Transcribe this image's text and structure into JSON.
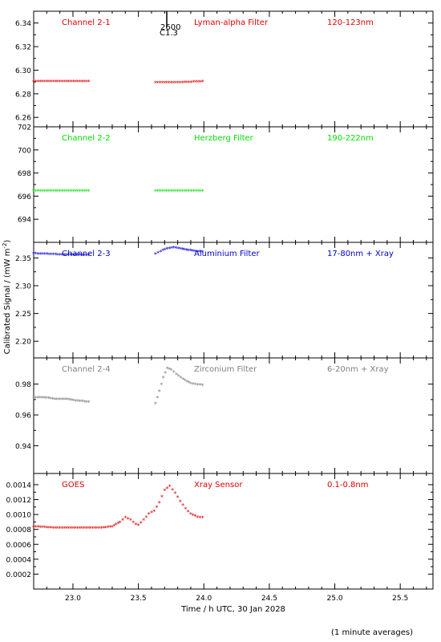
{
  "figure": {
    "ylabel": "Calibrated Signal / (mW m",
    "ylabel_sup": "-2",
    "ylabel_close": ")",
    "xlabel": "Time / h UTC, 30 Jan 2028",
    "footnote": "(1 minute averages)",
    "marker_label_1": "2600",
    "marker_label_2": "C1.3"
  },
  "colors": {
    "red": "#dd0000",
    "green": "#00e000",
    "blue": "#0000cc",
    "gray": "#808080",
    "black": "#000000"
  },
  "chart_data": [
    {
      "type": "scatter",
      "channel": "Channel 2-1",
      "filter": "Lyman-alpha Filter",
      "band": "120-123nm",
      "color": "#dd0000",
      "xlim": [
        22.7,
        25.75
      ],
      "ylim": [
        6.252,
        6.35
      ],
      "xticks": [
        23.0,
        23.5,
        24.0,
        24.5,
        25.0,
        25.5
      ],
      "yticks": [
        6.26,
        6.28,
        6.3,
        6.32,
        6.34
      ],
      "ytick_labels": [
        "6.26",
        "6.28",
        "6.30",
        "6.32",
        "6.34"
      ],
      "segments": [
        {
          "x": [
            22.7,
            22.9,
            23.12
          ],
          "y": [
            6.29,
            6.29,
            6.29
          ]
        },
        {
          "x": [
            23.63,
            23.8,
            23.99
          ],
          "y": [
            6.289,
            6.289,
            6.29
          ]
        }
      ]
    },
    {
      "type": "scatter",
      "channel": "Channel 2-2",
      "filter": "Herzberg Filter",
      "band": "190-222nm",
      "color": "#00e000",
      "xlim": [
        22.7,
        25.75
      ],
      "ylim": [
        692.0,
        702.0
      ],
      "xticks": [
        23.0,
        23.5,
        24.0,
        24.5,
        25.0,
        25.5
      ],
      "yticks": [
        694,
        696,
        698,
        700,
        702
      ],
      "ytick_labels": [
        "694",
        "696",
        "698",
        "700",
        "702"
      ],
      "segments": [
        {
          "x": [
            22.7,
            22.9,
            23.12
          ],
          "y": [
            696.4,
            696.4,
            696.4
          ]
        },
        {
          "x": [
            23.63,
            23.8,
            23.99
          ],
          "y": [
            696.4,
            696.4,
            696.4
          ]
        }
      ]
    },
    {
      "type": "scatter",
      "channel": "Channel 2-3",
      "filter": "Aluminium Filter",
      "band": "17-80nm + Xray",
      "color": "#0000cc",
      "xlim": [
        22.7,
        25.75
      ],
      "ylim": [
        2.17,
        2.378
      ],
      "xticks": [
        23.0,
        23.5,
        24.0,
        24.5,
        25.0,
        25.5
      ],
      "yticks": [
        2.2,
        2.25,
        2.3,
        2.35
      ],
      "ytick_labels": [
        "2.20",
        "2.25",
        "2.30",
        "2.35"
      ],
      "segments": [
        {
          "x": [
            22.7,
            22.8,
            22.9,
            23.0,
            23.12
          ],
          "y": [
            2.357,
            2.356,
            2.355,
            2.355,
            2.354
          ]
        },
        {
          "x": [
            23.63,
            23.67,
            23.72,
            23.77,
            23.82,
            23.88,
            23.94,
            23.99
          ],
          "y": [
            2.356,
            2.361,
            2.366,
            2.368,
            2.366,
            2.363,
            2.361,
            2.36
          ]
        }
      ]
    },
    {
      "type": "scatter",
      "channel": "Channel 2-4",
      "filter": "Zirconium Filter",
      "band": "6-20nm + Xray",
      "color": "#808080",
      "xlim": [
        22.7,
        25.75
      ],
      "ylim": [
        0.922,
        0.997
      ],
      "xticks": [
        23.0,
        23.5,
        24.0,
        24.5,
        25.0,
        25.5
      ],
      "yticks": [
        0.94,
        0.96,
        0.98
      ],
      "ytick_labels": [
        "0.94",
        "0.96",
        "0.98"
      ],
      "segments": [
        {
          "x": [
            22.7,
            22.78,
            22.86,
            22.94,
            23.02,
            23.12
          ],
          "y": [
            0.971,
            0.971,
            0.97,
            0.97,
            0.969,
            0.968
          ]
        },
        {
          "x": [
            23.63,
            23.66,
            23.69,
            23.72,
            23.75,
            23.79,
            23.84,
            23.9,
            23.99
          ],
          "y": [
            0.967,
            0.975,
            0.984,
            0.99,
            0.989,
            0.986,
            0.983,
            0.98,
            0.979
          ]
        }
      ]
    },
    {
      "type": "scatter",
      "channel": "GOES",
      "filter": "Xray Sensor",
      "band": "0.1-0.8nm",
      "color": "#dd0000",
      "xlim": [
        22.7,
        25.75
      ],
      "ylim": [
        0.0,
        0.00155
      ],
      "xticks": [
        23.0,
        23.5,
        24.0,
        24.5,
        25.0,
        25.5
      ],
      "yticks": [
        0.0002,
        0.0004,
        0.0006,
        0.0008,
        0.001,
        0.0012,
        0.0014
      ],
      "ytick_labels": [
        "0.0002",
        "0.0004",
        "0.0006",
        "0.0008",
        "0.0010",
        "0.0012",
        "0.0014"
      ],
      "segments": [
        {
          "x": [
            22.7,
            22.8,
            22.9,
            23.0,
            23.1,
            23.2,
            23.3,
            23.36,
            23.4,
            23.44,
            23.48,
            23.5,
            23.54,
            23.58,
            23.62,
            23.66,
            23.7,
            23.74,
            23.78,
            23.82,
            23.86,
            23.9,
            23.95,
            23.99
          ],
          "y": [
            0.00083,
            0.00082,
            0.00081,
            0.00081,
            0.00081,
            0.00081,
            0.00083,
            0.00089,
            0.00095,
            0.00092,
            0.00086,
            0.00085,
            0.00092,
            0.001,
            0.00104,
            0.00115,
            0.00132,
            0.00137,
            0.00128,
            0.00117,
            0.00107,
            0.001,
            0.00096,
            0.00095
          ]
        }
      ]
    }
  ]
}
